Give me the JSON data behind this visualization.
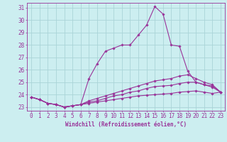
{
  "xlabel": "Windchill (Refroidissement éolien,°C)",
  "bg_color": "#cceef0",
  "grid_color": "#aad4d8",
  "line_color": "#993399",
  "spine_color": "#993399",
  "x_labels": [
    "0",
    "1",
    "2",
    "3",
    "4",
    "5",
    "6",
    "7",
    "8",
    "9",
    "10",
    "11",
    "12",
    "13",
    "14",
    "15",
    "16",
    "17",
    "18",
    "19",
    "20",
    "21",
    "22",
    "23"
  ],
  "ylim": [
    22.7,
    31.4
  ],
  "yticks": [
    23,
    24,
    25,
    26,
    27,
    28,
    29,
    30,
    31
  ],
  "series": [
    [
      23.8,
      23.6,
      23.3,
      23.2,
      23.0,
      23.1,
      23.2,
      25.3,
      26.5,
      27.5,
      27.75,
      28.0,
      28.0,
      28.8,
      29.6,
      31.1,
      30.5,
      28.0,
      27.9,
      25.9,
      25.0,
      24.8,
      24.7,
      24.2
    ],
    [
      23.8,
      23.6,
      23.3,
      23.2,
      23.0,
      23.1,
      23.2,
      23.5,
      23.7,
      23.9,
      24.1,
      24.3,
      24.5,
      24.7,
      24.9,
      25.1,
      25.2,
      25.3,
      25.5,
      25.6,
      25.3,
      25.0,
      24.8,
      24.2
    ],
    [
      23.8,
      23.6,
      23.3,
      23.2,
      23.0,
      23.1,
      23.2,
      23.4,
      23.5,
      23.7,
      23.9,
      24.0,
      24.2,
      24.3,
      24.5,
      24.65,
      24.7,
      24.75,
      24.9,
      25.0,
      25.0,
      24.8,
      24.6,
      24.2
    ],
    [
      23.8,
      23.6,
      23.3,
      23.2,
      23.0,
      23.1,
      23.2,
      23.3,
      23.4,
      23.5,
      23.6,
      23.7,
      23.8,
      23.9,
      23.95,
      24.0,
      24.05,
      24.1,
      24.2,
      24.25,
      24.3,
      24.2,
      24.1,
      24.2
    ]
  ],
  "tick_fontsize": 5.5,
  "xlabel_fontsize": 5.5
}
